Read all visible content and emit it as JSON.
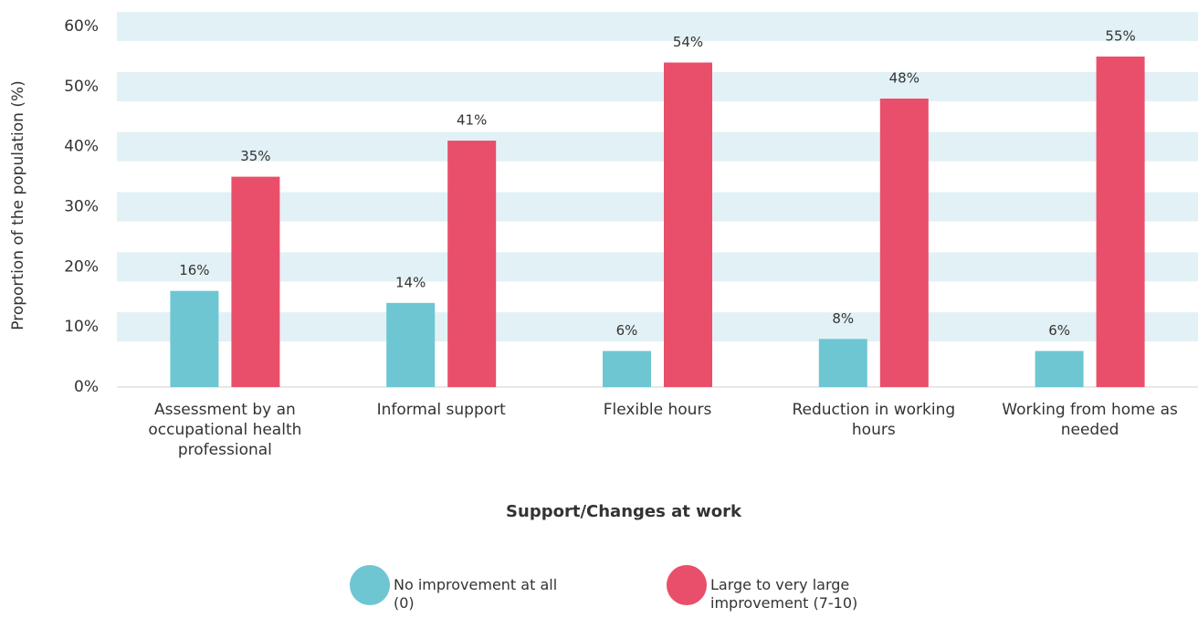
{
  "chart_data": {
    "type": "bar",
    "y_label": "Proportion of the population (%)",
    "x_label": "Support/Changes at work",
    "categories": [
      "Assessment by an occupational health professional",
      "Informal support",
      "Flexible hours",
      "Reduction in working hours",
      "Working from home as needed"
    ],
    "series": [
      {
        "name": "No improvement at all (0)",
        "color": "#6ec6d3",
        "values": [
          16,
          14,
          6,
          8,
          6
        ],
        "value_labels": [
          "16%",
          "14%",
          "6%",
          "8%",
          "6%"
        ]
      },
      {
        "name": "Large to very large improvement (7-10)",
        "color": "#e94f6a",
        "values": [
          35,
          41,
          54,
          48,
          55
        ],
        "value_labels": [
          "35%",
          "41%",
          "54%",
          "48%",
          "55%"
        ]
      }
    ],
    "ylim": [
      0,
      60
    ],
    "yticks": [
      {
        "value": 0,
        "label": "0%"
      },
      {
        "value": 10,
        "label": "10%"
      },
      {
        "value": 20,
        "label": "20%"
      },
      {
        "value": 30,
        "label": "30%"
      },
      {
        "value": 40,
        "label": "40%"
      },
      {
        "value": 50,
        "label": "50%"
      },
      {
        "value": 60,
        "label": "60%"
      }
    ],
    "grid": true,
    "grid_color": "#e2f1f5",
    "legend": "bottom"
  }
}
